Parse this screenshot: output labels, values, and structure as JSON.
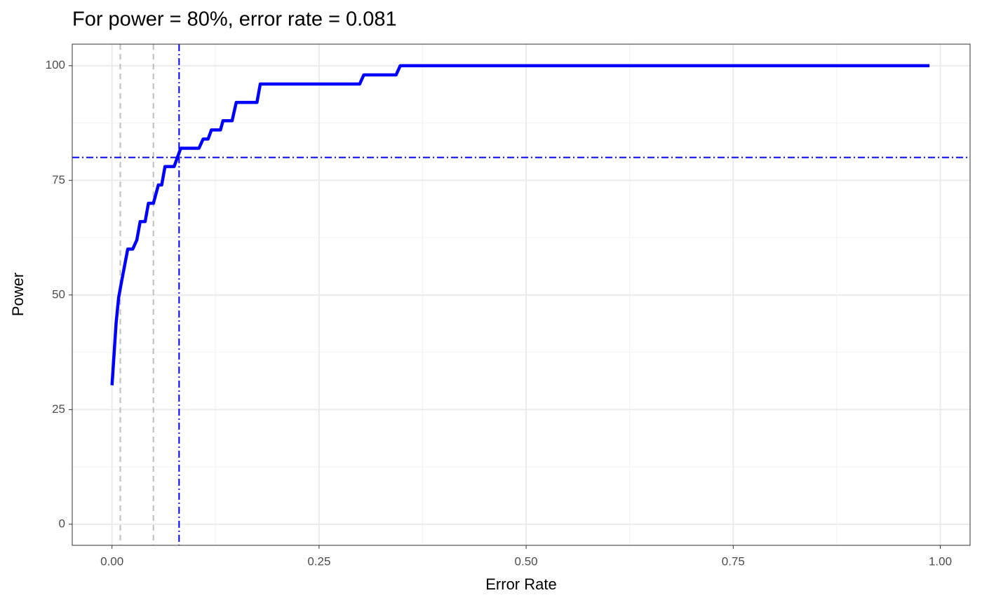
{
  "chart_data": {
    "type": "line",
    "title": "For power = 80%, error rate = 0.081",
    "xlabel": "Error Rate",
    "ylabel": "Power",
    "x": [
      0.0,
      0.005,
      0.008,
      0.011,
      0.019,
      0.025,
      0.03,
      0.034,
      0.04,
      0.044,
      0.05,
      0.056,
      0.06,
      0.064,
      0.075,
      0.083,
      0.105,
      0.11,
      0.116,
      0.12,
      0.131,
      0.134,
      0.145,
      0.15,
      0.175,
      0.179,
      0.299,
      0.304,
      0.343,
      0.348,
      0.987
    ],
    "values": [
      30.3,
      44,
      49.4,
      52.4,
      60,
      60,
      62,
      66,
      66,
      70,
      70,
      74,
      74,
      78,
      78,
      82,
      82,
      84,
      84,
      86,
      86,
      88,
      88,
      92,
      92,
      96,
      96,
      98,
      98,
      100,
      100
    ],
    "color": "#0000ff",
    "xlim": [
      -0.048,
      1.036
    ],
    "ylim": [
      -4.6,
      104.7
    ],
    "xticks": [
      {
        "value": 0,
        "label": "0.00"
      },
      {
        "value": 0.25,
        "label": "0.25"
      },
      {
        "value": 0.5,
        "label": "0.50"
      },
      {
        "value": 0.75,
        "label": "0.75"
      },
      {
        "value": 1,
        "label": "1.00"
      }
    ],
    "yticks": [
      0,
      25,
      50,
      75,
      100
    ],
    "xminor": [
      0.125,
      0.375,
      0.625,
      0.875
    ],
    "yminor": [
      12.5,
      37.5,
      62.5,
      87.5
    ],
    "grid": true,
    "vlines": [
      {
        "x": 0.01,
        "color": "#bebebe",
        "style": "dashed"
      },
      {
        "x": 0.05,
        "color": "#bebebe",
        "style": "dashed"
      },
      {
        "x": 0.081,
        "color": "#0000ff",
        "style": "dotdash"
      }
    ],
    "hlines": [
      {
        "y": 80,
        "color": "#0000ff",
        "style": "dotdash"
      }
    ]
  }
}
